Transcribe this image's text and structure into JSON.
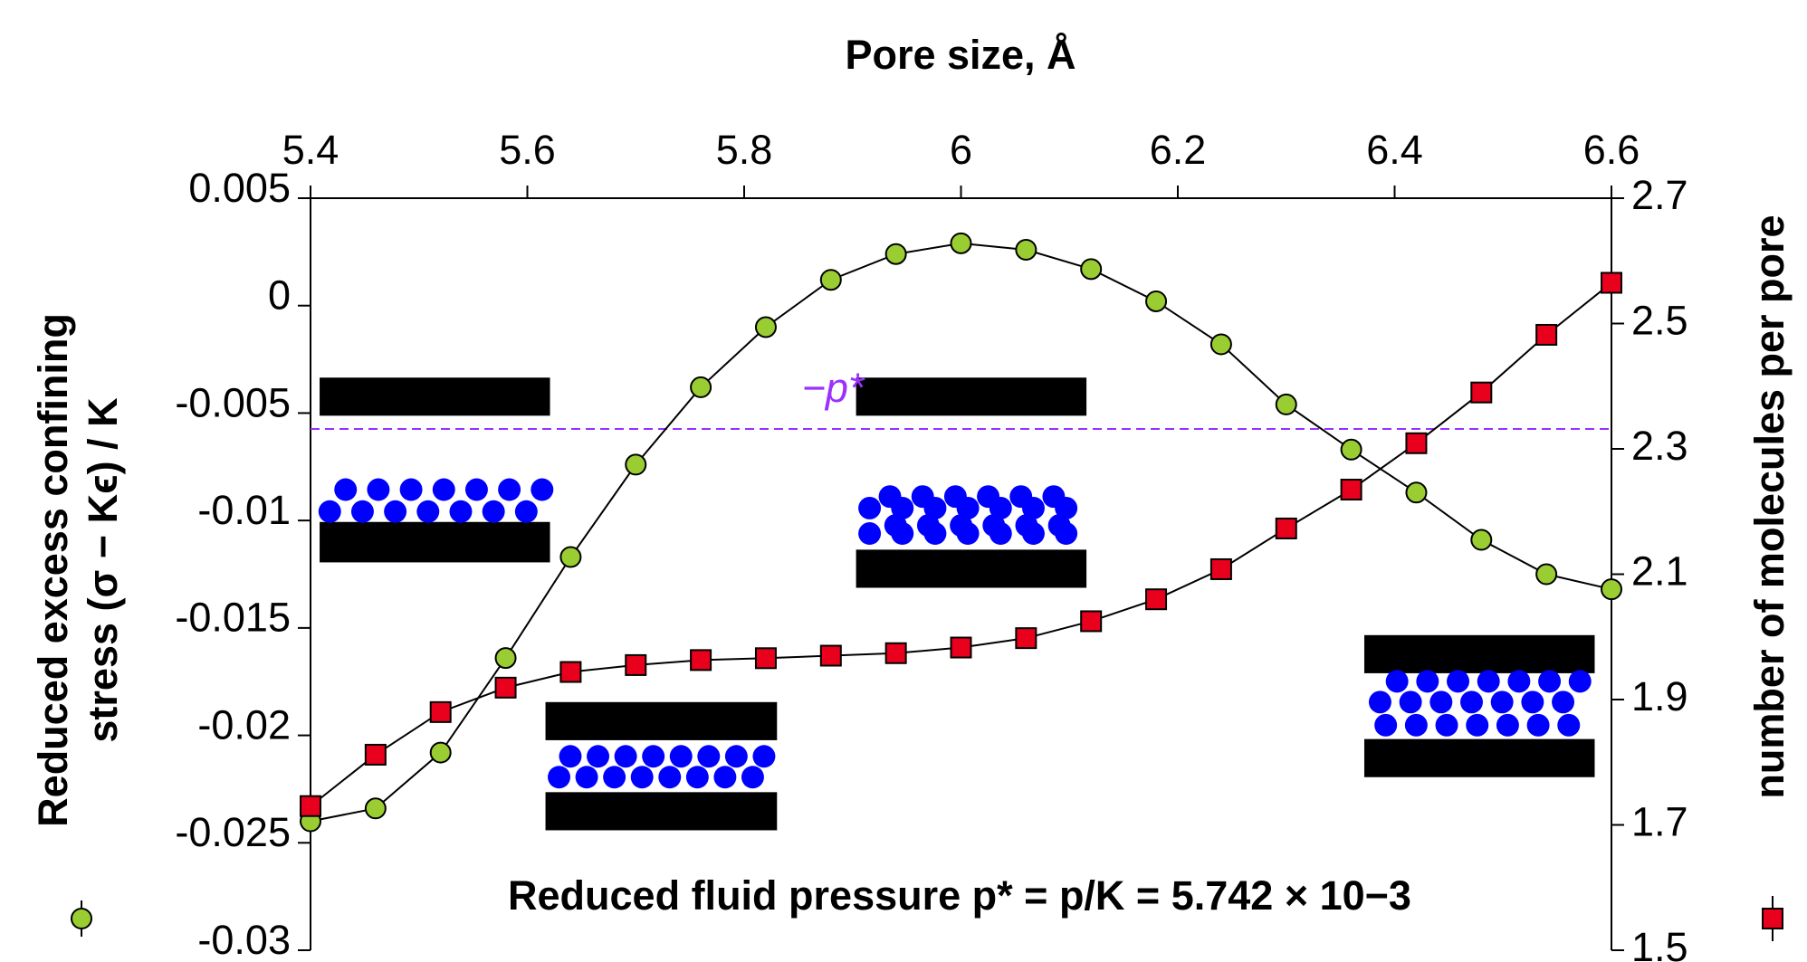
{
  "chart_data": {
    "type": "line",
    "title": "Pore size, Å",
    "ylabel": [
      "Reduced excess confining",
      "stress (σ − Kϵ) / K"
    ],
    "y2label": "number of molecules per pore",
    "annotation": "Reduced fluid pressure p* = p/K = 5.742 × 10−3",
    "reference_line": {
      "value": -0.005742,
      "label": "−p*",
      "color": "#9b30ff"
    },
    "x": [
      5.4,
      5.46,
      5.52,
      5.58,
      5.64,
      5.7,
      5.76,
      5.82,
      5.88,
      5.94,
      6.0,
      6.06,
      6.12,
      6.18,
      6.24,
      6.3,
      6.36,
      6.42,
      6.48,
      6.54,
      6.6
    ],
    "series": [
      {
        "color": "#9acd32",
        "marker": "circle",
        "axis": "y",
        "values": [
          -0.024,
          -0.0234,
          -0.0208,
          -0.0164,
          -0.0117,
          -0.0074,
          -0.0038,
          -0.001,
          0.0012,
          0.0024,
          0.0029,
          0.0026,
          0.0017,
          0.0002,
          -0.0018,
          -0.0046,
          -0.0067,
          -0.0087,
          -0.0109,
          -0.0125,
          -0.0132
        ]
      },
      {
        "color": "#e8001c",
        "marker": "square",
        "axis": "y2",
        "values": [
          1.73,
          1.812,
          1.88,
          1.919,
          1.944,
          1.955,
          1.963,
          1.966,
          1.97,
          1.974,
          1.983,
          1.998,
          2.025,
          2.06,
          2.108,
          2.173,
          2.235,
          2.309,
          2.39,
          2.482,
          2.565
        ]
      }
    ],
    "xlim": [
      5.4,
      6.6
    ],
    "xticks": [
      5.4,
      5.6,
      5.8,
      6,
      6.2,
      6.4,
      6.6
    ],
    "ylim": [
      -0.03,
      0.005
    ],
    "yticks": [
      0.005,
      0,
      -0.005,
      -0.01,
      -0.015,
      -0.02,
      -0.025,
      -0.03
    ],
    "y2lim": [
      1.5,
      2.7
    ],
    "y2ticks": [
      2.7,
      2.5,
      2.3,
      2.1,
      1.9,
      1.7,
      1.5
    ]
  }
}
